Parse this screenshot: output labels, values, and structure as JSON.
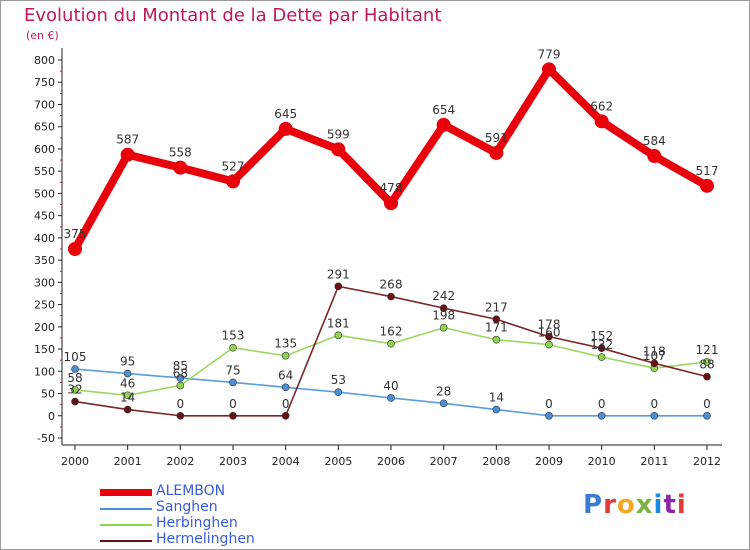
{
  "title": "Evolution du Montant de la Dette par Habitant",
  "subtitle": "(en €)",
  "brand": "Proxiti",
  "chart_data": {
    "type": "line",
    "x": [
      "2000",
      "2001",
      "2002",
      "2003",
      "2004",
      "2005",
      "2006",
      "2007",
      "2008",
      "2009",
      "2010",
      "2011",
      "2012"
    ],
    "ylim": [
      -50,
      800
    ],
    "yticks": [
      -50,
      0,
      50,
      100,
      150,
      200,
      250,
      300,
      350,
      400,
      450,
      500,
      550,
      600,
      650,
      700,
      750,
      800
    ],
    "grid": false,
    "legend_position": "bottom-left",
    "series": [
      {
        "name": "ALEMBON",
        "color": "#e8000b",
        "values": [
          375,
          587,
          558,
          527,
          645,
          599,
          478,
          654,
          591,
          779,
          662,
          584,
          517
        ]
      },
      {
        "name": "Sanghen",
        "color": "#4a90d9",
        "values": [
          105,
          95,
          85,
          75,
          64,
          53,
          40,
          28,
          14,
          0,
          0,
          0,
          0
        ]
      },
      {
        "name": "Herbinghen",
        "color": "#8fd44f",
        "values": [
          58,
          46,
          68,
          153,
          135,
          181,
          162,
          198,
          171,
          160,
          132,
          107,
          121
        ]
      },
      {
        "name": "Hermelinghen",
        "color": "#6b1010",
        "values": [
          32,
          14,
          0,
          0,
          0,
          291,
          268,
          242,
          217,
          178,
          152,
          118,
          88
        ]
      }
    ]
  }
}
